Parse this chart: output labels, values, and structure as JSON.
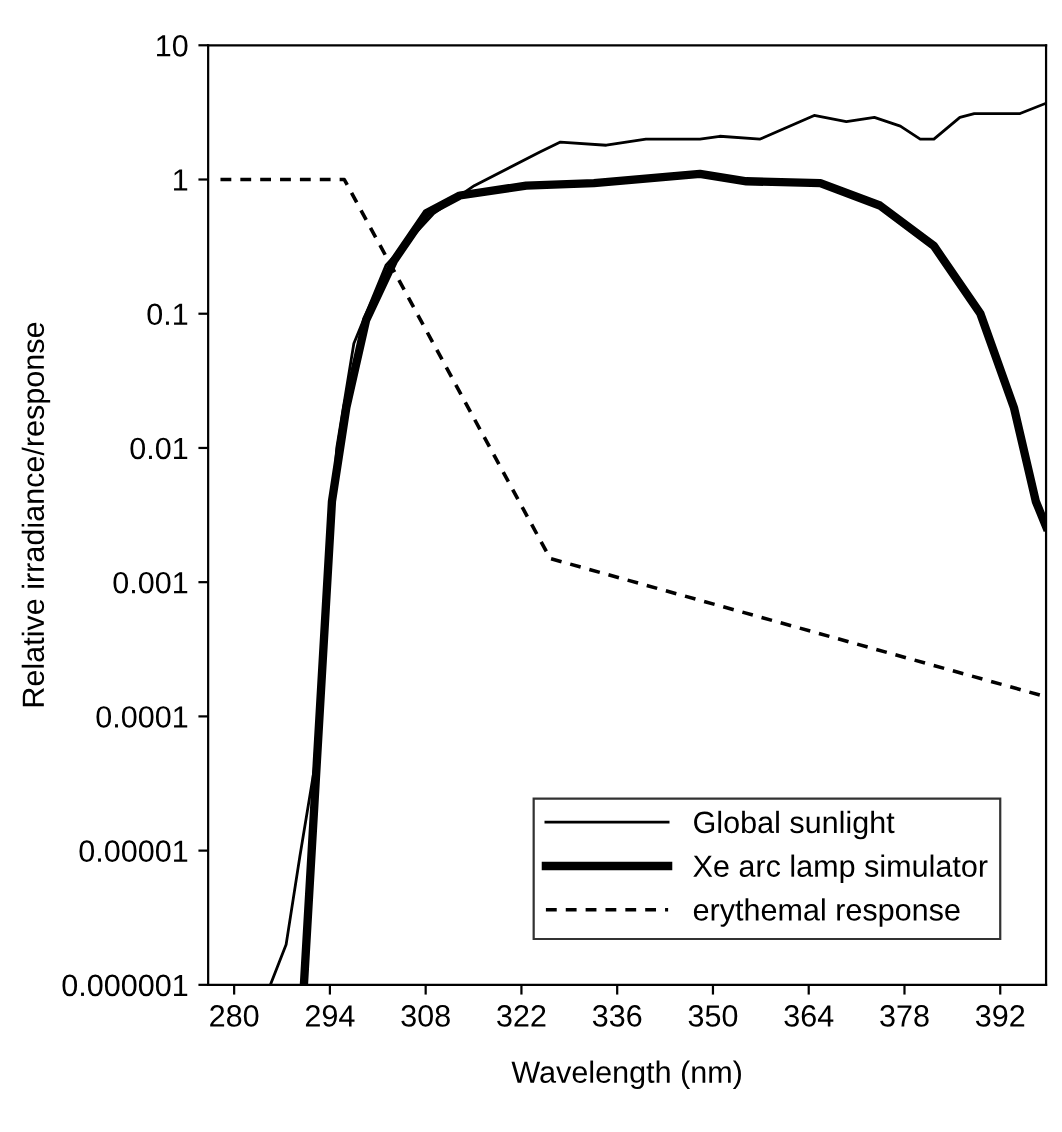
{
  "chart_data": {
    "type": "line",
    "xlabel": "Wavelength (nm)",
    "ylabel": "Relative irradiance/response",
    "log": "y",
    "xlim": [
      276.2,
      398.7
    ],
    "ylim": [
      1e-06,
      10
    ],
    "xticks": [
      280,
      294,
      308,
      322,
      336,
      350,
      364,
      378,
      392
    ],
    "yticks": [
      {
        "value": 10,
        "label": "10"
      },
      {
        "value": 1,
        "label": "1"
      },
      {
        "value": 0.1,
        "label": "0.1"
      },
      {
        "value": 0.01,
        "label": "0.01"
      },
      {
        "value": 0.001,
        "label": "0.001"
      },
      {
        "value": 0.0001,
        "label": "0.0001"
      },
      {
        "value": 1e-05,
        "label": "0.00001"
      },
      {
        "value": 1e-06,
        "label": "0.000001"
      }
    ],
    "grid": false,
    "legend": "bottom right",
    "marker": "none",
    "series": [
      {
        "name": "Global sunlight",
        "color": "#000000",
        "line_style": "solid",
        "x": [
          285.3,
          287.6,
          289.6,
          291.7,
          293.5,
          295,
          297.5,
          302.2,
          309.2,
          315.1,
          324.7,
          327.7,
          334.4,
          340.2,
          348.1,
          351,
          356.9,
          364.8,
          369.5,
          373.6,
          377.4,
          380.3,
          382.3,
          386.1,
          388.2,
          394.9,
          398.7
        ],
        "values": [
          1e-06,
          2e-06,
          9e-06,
          4e-05,
          0.001,
          0.01,
          0.06,
          0.23,
          0.56,
          0.9,
          1.6,
          1.9,
          1.8,
          2,
          2,
          2.1,
          2,
          3,
          2.7,
          2.9,
          2.5,
          2,
          2,
          2.9,
          3.1,
          3.1,
          3.7
        ]
      },
      {
        "name": "Xe arc lamp simulator",
        "color": "#000000",
        "line_style": "solid",
        "x": [
          290.2,
          294.3,
          296.4,
          299.3,
          303.4,
          308.1,
          313,
          322.7,
          332.6,
          348.1,
          354.9,
          365.7,
          374.4,
          382.3,
          389.1,
          394,
          397.2,
          398.7
        ],
        "values": [
          1e-06,
          0.004,
          0.02,
          0.09,
          0.25,
          0.56,
          0.76,
          0.9,
          0.94,
          1.1,
          0.97,
          0.94,
          0.64,
          0.32,
          0.1,
          0.02,
          0.004,
          0.0026
        ]
      },
      {
        "name": "erythemal response",
        "color": "#000000",
        "line_style": "dashed",
        "x": [
          278,
          296.1,
          326.2,
          398.7
        ],
        "values": [
          1,
          1,
          0.0015,
          0.00014
        ]
      }
    ]
  }
}
